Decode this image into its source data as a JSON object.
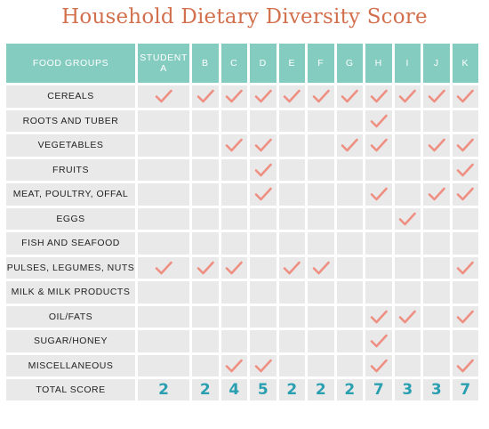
{
  "title": "Household Dietary Diversity Score",
  "colors": {
    "header": "#85ccc0",
    "cell": "#e9e9ea",
    "check": "#ee8f82",
    "score": "#2a9fb0",
    "title": "#d2704e"
  },
  "chart_data": {
    "type": "table",
    "corner_label": "FOOD GROUPS",
    "students": [
      "STUDENT A",
      "B",
      "C",
      "D",
      "E",
      "F",
      "G",
      "H",
      "I",
      "J",
      "K"
    ],
    "rows": [
      {
        "label": "CEREALS",
        "checks": [
          1,
          1,
          1,
          1,
          1,
          1,
          1,
          1,
          1,
          1,
          1
        ]
      },
      {
        "label": "ROOTS AND TUBER",
        "checks": [
          0,
          0,
          0,
          0,
          0,
          0,
          0,
          1,
          0,
          0,
          0
        ]
      },
      {
        "label": "VEGETABLES",
        "checks": [
          0,
          0,
          1,
          1,
          0,
          0,
          1,
          1,
          0,
          1,
          1
        ]
      },
      {
        "label": "FRUITS",
        "checks": [
          0,
          0,
          0,
          1,
          0,
          0,
          0,
          0,
          0,
          0,
          1
        ]
      },
      {
        "label": "MEAT, POULTRY, OFFAL",
        "checks": [
          0,
          0,
          0,
          1,
          0,
          0,
          0,
          1,
          0,
          1,
          1
        ]
      },
      {
        "label": "EGGS",
        "checks": [
          0,
          0,
          0,
          0,
          0,
          0,
          0,
          0,
          1,
          0,
          0
        ]
      },
      {
        "label": "FISH AND SEAFOOD",
        "checks": [
          0,
          0,
          0,
          0,
          0,
          0,
          0,
          0,
          0,
          0,
          0
        ]
      },
      {
        "label": "PULSES, LEGUMES, NUTS",
        "checks": [
          1,
          1,
          1,
          0,
          1,
          1,
          0,
          0,
          0,
          0,
          1
        ]
      },
      {
        "label": "MILK & MILK PRODUCTS",
        "checks": [
          0,
          0,
          0,
          0,
          0,
          0,
          0,
          0,
          0,
          0,
          0
        ]
      },
      {
        "label": "OIL/FATS",
        "checks": [
          0,
          0,
          0,
          0,
          0,
          0,
          0,
          1,
          1,
          0,
          1
        ]
      },
      {
        "label": "SUGAR/HONEY",
        "checks": [
          0,
          0,
          0,
          0,
          0,
          0,
          0,
          1,
          0,
          0,
          0
        ]
      },
      {
        "label": "MISCELLANEOUS",
        "checks": [
          0,
          0,
          1,
          1,
          0,
          0,
          0,
          1,
          0,
          0,
          1
        ]
      }
    ],
    "total_label": "TOTAL SCORE",
    "totals": [
      "2",
      "2",
      "4",
      "5",
      "2",
      "2",
      "2",
      "7",
      "3",
      "3",
      "7"
    ]
  }
}
